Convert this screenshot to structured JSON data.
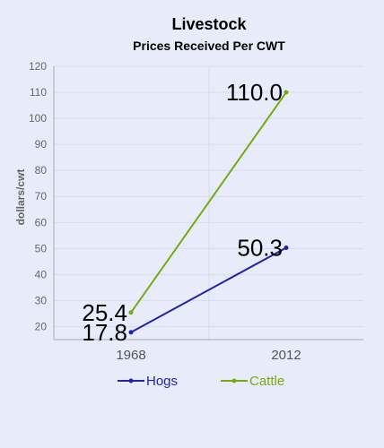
{
  "chart_data": {
    "type": "line",
    "title": "Livestock",
    "subtitle": "Prices Received Per CWT",
    "ylabel": "dollars/cwt",
    "categories": [
      "1968",
      "2012"
    ],
    "ylim": [
      15,
      120
    ],
    "yticks": [
      20,
      30,
      40,
      50,
      60,
      70,
      80,
      90,
      100,
      110,
      120
    ],
    "grid": true,
    "legend_position": "bottom",
    "series": [
      {
        "name": "Hogs",
        "values": [
          17.8,
          50.3
        ],
        "labels": [
          "17.8",
          "50.3"
        ],
        "color": "#2222aa"
      },
      {
        "name": "Cattle",
        "values": [
          25.4,
          110.0
        ],
        "labels": [
          "25.4",
          "110.0"
        ],
        "color": "#77aa11"
      }
    ]
  }
}
